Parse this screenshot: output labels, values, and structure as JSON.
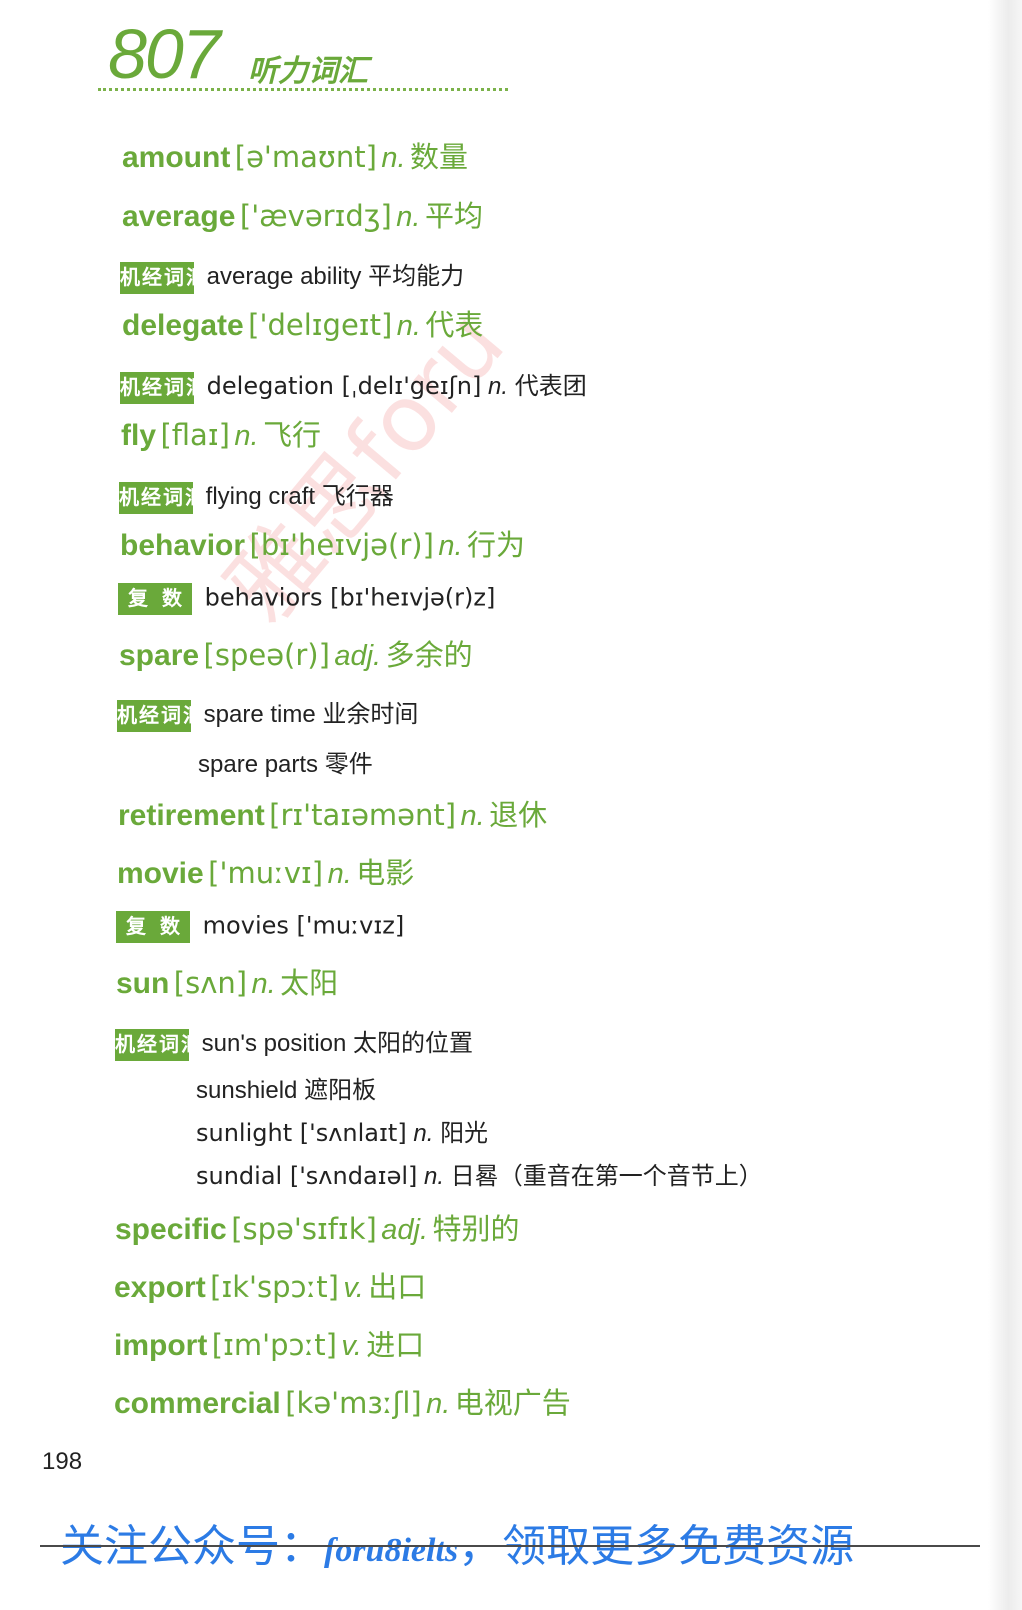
{
  "header": {
    "number": "807",
    "title": "听力词汇"
  },
  "badges": {
    "jijing": "机经词汇",
    "fushu": "复数"
  },
  "entries": [
    {
      "word": "amount",
      "ipa": "[ə'maʊnt]",
      "pos": "n.",
      "cn": "数量"
    },
    {
      "word": "average",
      "ipa": "['ævərɪdʒ]",
      "pos": "n.",
      "cn": "平均",
      "sub": {
        "text": "average ability 平均能力"
      }
    },
    {
      "word": "delegate",
      "ipa": "['delɪgeɪt]",
      "pos": "n.",
      "cn": "代表",
      "sub": {
        "text": "delegation [ˌdelɪ'geɪʃn]",
        "pos": "n.",
        "cn": "代表团"
      }
    },
    {
      "word": "fly",
      "ipa": "[flaɪ]",
      "pos": "n.",
      "cn": "飞行",
      "sub": {
        "text": "flying craft 飞行器"
      }
    },
    {
      "word": "behavior",
      "ipa": "[bɪ'heɪvjə(r)]",
      "pos": "n.",
      "cn": "行为",
      "sub": {
        "text": "behaviors [bɪ'heɪvjə(r)z]"
      }
    },
    {
      "word": "spare",
      "ipa": "[speə(r)]",
      "pos": "adj.",
      "cn": "多余的",
      "sub": {
        "text": "spare time 业余时间",
        "line2": "spare parts 零件"
      }
    },
    {
      "word": "retirement",
      "ipa": "[rɪ'taɪəmənt]",
      "pos": "n.",
      "cn": "退休"
    },
    {
      "word": "movie",
      "ipa": "['muːvɪ]",
      "pos": "n.",
      "cn": "电影",
      "sub": {
        "text": "movies ['muːvɪz]"
      }
    },
    {
      "word": "sun",
      "ipa": "[sʌn]",
      "pos": "n.",
      "cn": "太阳",
      "sub": {
        "text": "sun's position 太阳的位置",
        "line2": "sunshield 遮阳板",
        "line3a": "sunlight ['sʌnlaɪt]",
        "line3pos": "n.",
        "line3cn": "阳光",
        "line4a": "sundial ['sʌndaɪəl]",
        "line4pos": "n.",
        "line4cn": "日晷（重音在第一个音节上）"
      }
    },
    {
      "word": "specific",
      "ipa": "[spə'sɪfɪk]",
      "pos": "adj.",
      "cn": "特别的"
    },
    {
      "word": "export",
      "ipa": "[ɪk'spɔːt]",
      "pos": "v.",
      "cn": "出口"
    },
    {
      "word": "import",
      "ipa": "[ɪm'pɔːt]",
      "pos": "v.",
      "cn": "进口"
    },
    {
      "word": "commercial",
      "ipa": "[kə'mɜːʃl]",
      "pos": "n.",
      "cn": "电视广告"
    }
  ],
  "page_number": "198",
  "watermark": "雅思foru",
  "footer": {
    "prefix": "关注公众号：",
    "handle": "foru8ielts",
    "suffix": "，领取更多免费资源"
  },
  "colors": {
    "accent": "#6aa93a",
    "footer": "#2c7be5"
  }
}
